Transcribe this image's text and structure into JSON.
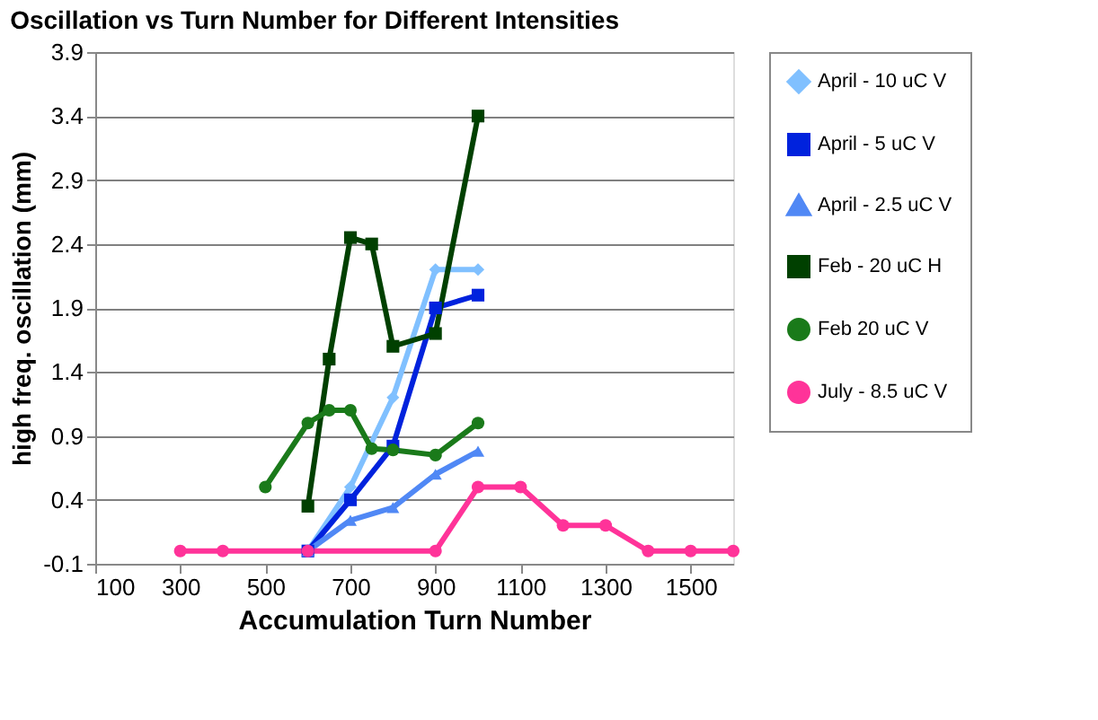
{
  "chart_data": {
    "type": "line",
    "title": "Oscillation vs Turn Number for Different Intensities",
    "xlabel": "Accumulation Turn Number",
    "ylabel": "high freq. oscillation (mm)",
    "xlim": [
      100,
      1600
    ],
    "xticks": [
      100,
      300,
      500,
      700,
      900,
      1100,
      1300,
      1500
    ],
    "ylim": [
      -0.1,
      3.9
    ],
    "yticks": [
      -0.1,
      0.4,
      0.9,
      1.4,
      1.9,
      2.4,
      2.9,
      3.4,
      3.9
    ],
    "grid": "y",
    "legend": "right",
    "series": [
      {
        "name": "April -  10 uC V",
        "color": "#80c0ff",
        "marker": "diamond",
        "x": [
          600,
          700,
          800,
          900,
          1000
        ],
        "values": [
          0,
          0.5,
          1.2,
          2.2,
          2.2
        ]
      },
      {
        "name": "April - 5 uC V",
        "color": "#0022dd",
        "marker": "square",
        "x": [
          600,
          700,
          800,
          900,
          1000
        ],
        "values": [
          0,
          0.4,
          0.82,
          1.9,
          2.0
        ]
      },
      {
        "name": "April - 2.5 uC V",
        "color": "#5088f5",
        "marker": "triangle",
        "x": [
          600,
          700,
          800,
          900,
          1000
        ],
        "values": [
          0,
          0.24,
          0.34,
          0.6,
          0.78
        ]
      },
      {
        "name": "Feb - 20 uC H",
        "color": "#004000",
        "marker": "square",
        "x": [
          600,
          650,
          700,
          750,
          800,
          900,
          1000
        ],
        "values": [
          0.35,
          1.5,
          2.45,
          2.4,
          1.6,
          1.7,
          3.4
        ]
      },
      {
        "name": "Feb 20 uC V",
        "color": "#1a7a1a",
        "marker": "circle",
        "x": [
          500,
          600,
          650,
          700,
          750,
          800,
          900,
          1000
        ],
        "values": [
          0.5,
          1.0,
          1.1,
          1.1,
          0.8,
          0.79,
          0.75,
          1.0
        ]
      },
      {
        "name": "July - 8.5 uC V",
        "color": "#ff3399",
        "marker": "circle",
        "x": [
          300,
          400,
          600,
          900,
          1000,
          1100,
          1200,
          1300,
          1400,
          1500,
          1600
        ],
        "values": [
          0,
          0,
          0,
          0,
          0.5,
          0.5,
          0.2,
          0.2,
          0,
          0,
          0
        ]
      }
    ]
  }
}
